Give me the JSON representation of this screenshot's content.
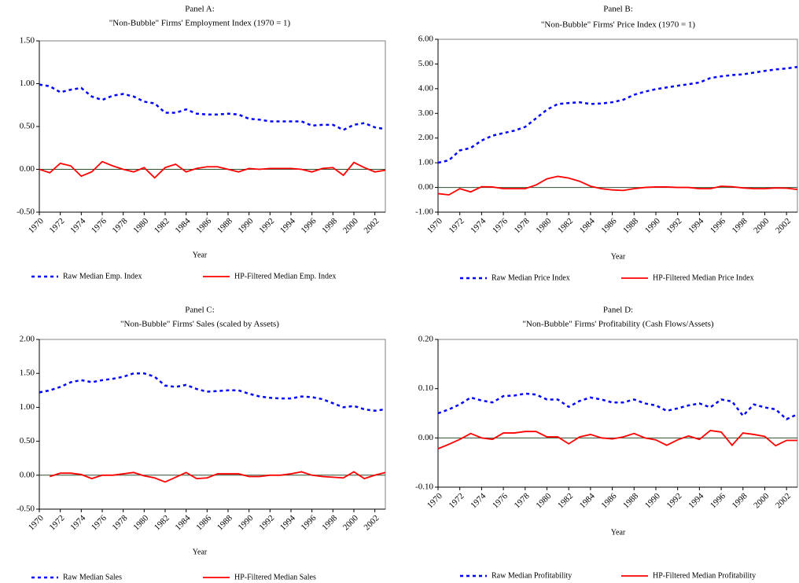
{
  "chart_data": [
    {
      "type": "line",
      "title": "Panel A:",
      "subtitle": "\"Non-Bubble\" Firms' Employment Index (1970 = 1)",
      "xlabel": "Year",
      "x": [
        1970,
        1971,
        1972,
        1973,
        1974,
        1975,
        1976,
        1977,
        1978,
        1979,
        1980,
        1981,
        1982,
        1983,
        1984,
        1985,
        1986,
        1987,
        1988,
        1989,
        1990,
        1991,
        1992,
        1993,
        1994,
        1995,
        1996,
        1997,
        1998,
        1999,
        2000,
        2001,
        2002,
        2003
      ],
      "xlim": [
        1970,
        2003
      ],
      "xticks": [
        1970,
        1972,
        1974,
        1976,
        1978,
        1980,
        1982,
        1984,
        1986,
        1988,
        1990,
        1992,
        1994,
        1996,
        1998,
        2000,
        2002
      ],
      "ylim": [
        -0.5,
        1.5
      ],
      "yticks": [
        {
          "value": -0.5,
          "label": "-0.50"
        },
        {
          "value": 0,
          "label": "0.00"
        },
        {
          "value": 0.5,
          "label": "0.50"
        },
        {
          "value": 1,
          "label": "1.00"
        },
        {
          "value": 1.5,
          "label": "1.50"
        }
      ],
      "series": [
        {
          "name": "Raw Median Emp. Index",
          "color": "#0000ff",
          "dashed": true,
          "values": [
            0.99,
            0.97,
            0.9,
            0.93,
            0.95,
            0.85,
            0.81,
            0.86,
            0.88,
            0.85,
            0.79,
            0.77,
            0.66,
            0.66,
            0.7,
            0.65,
            0.64,
            0.64,
            0.65,
            0.64,
            0.59,
            0.58,
            0.56,
            0.56,
            0.56,
            0.56,
            0.51,
            0.52,
            0.52,
            0.46,
            0.52,
            0.54,
            0.49,
            0.47
          ]
        },
        {
          "name": "HP-Filtered Median Emp. Index",
          "color": "#ff0000",
          "dashed": false,
          "values": [
            0.0,
            -0.04,
            0.07,
            0.04,
            -0.08,
            -0.03,
            0.09,
            0.04,
            0.0,
            -0.03,
            0.02,
            -0.1,
            0.02,
            0.06,
            -0.03,
            0.01,
            0.03,
            0.03,
            0.0,
            -0.03,
            0.01,
            0.0,
            0.01,
            0.01,
            0.01,
            0.0,
            -0.03,
            0.01,
            0.02,
            -0.07,
            0.08,
            0.02,
            -0.03,
            -0.01
          ]
        }
      ]
    },
    {
      "type": "line",
      "title": "Panel B:",
      "subtitle": "\"Non-Bubble\" Firms' Price Index (1970 = 1)",
      "xlabel": "Year",
      "x": [
        1970,
        1971,
        1972,
        1973,
        1974,
        1975,
        1976,
        1977,
        1978,
        1979,
        1980,
        1981,
        1982,
        1983,
        1984,
        1985,
        1986,
        1987,
        1988,
        1989,
        1990,
        1991,
        1992,
        1993,
        1994,
        1995,
        1996,
        1997,
        1998,
        1999,
        2000,
        2001,
        2002,
        2003
      ],
      "xlim": [
        1970,
        2003
      ],
      "xticks": [
        1970,
        1972,
        1974,
        1976,
        1978,
        1980,
        1982,
        1984,
        1986,
        1988,
        1990,
        1992,
        1994,
        1996,
        1998,
        2000,
        2002
      ],
      "ylim": [
        -1,
        6
      ],
      "yticks": [
        {
          "value": -1,
          "label": "-1.00"
        },
        {
          "value": 0,
          "label": "0.00"
        },
        {
          "value": 1,
          "label": "1.00"
        },
        {
          "value": 2,
          "label": "2.00"
        },
        {
          "value": 3,
          "label": "3.00"
        },
        {
          "value": 4,
          "label": "4.00"
        },
        {
          "value": 5,
          "label": "5.00"
        },
        {
          "value": 6,
          "label": "6.00"
        }
      ],
      "series": [
        {
          "name": "Raw Median Price Index",
          "color": "#0000ff",
          "dashed": true,
          "values": [
            1.0,
            1.1,
            1.5,
            1.6,
            1.9,
            2.1,
            2.2,
            2.3,
            2.45,
            2.8,
            3.15,
            3.38,
            3.42,
            3.45,
            3.38,
            3.4,
            3.45,
            3.55,
            3.75,
            3.88,
            3.98,
            4.05,
            4.12,
            4.18,
            4.25,
            4.43,
            4.5,
            4.55,
            4.58,
            4.65,
            4.72,
            4.78,
            4.82,
            4.88
          ]
        },
        {
          "name": "HP-Filtered Median Price Index",
          "color": "#ff0000",
          "dashed": false,
          "values": [
            -0.25,
            -0.3,
            -0.05,
            -0.18,
            0.03,
            0.02,
            -0.05,
            -0.05,
            -0.05,
            0.1,
            0.35,
            0.45,
            0.38,
            0.25,
            0.05,
            -0.05,
            -0.1,
            -0.12,
            -0.05,
            0.0,
            0.02,
            0.02,
            0.0,
            0.0,
            -0.05,
            -0.05,
            0.05,
            0.03,
            -0.02,
            -0.05,
            -0.05,
            -0.02,
            -0.03,
            -0.08
          ]
        }
      ]
    },
    {
      "type": "line",
      "title": "Panel C:",
      "subtitle": "\"Non-Bubble\" Firms' Sales (scaled by Assets)",
      "xlabel": "Year",
      "x": [
        1970,
        1971,
        1972,
        1973,
        1974,
        1975,
        1976,
        1977,
        1978,
        1979,
        1980,
        1981,
        1982,
        1983,
        1984,
        1985,
        1986,
        1987,
        1988,
        1989,
        1990,
        1991,
        1992,
        1993,
        1994,
        1995,
        1996,
        1997,
        1998,
        1999,
        2000,
        2001,
        2002,
        2003
      ],
      "xlim": [
        1970,
        2003
      ],
      "xticks": [
        1970,
        1972,
        1974,
        1976,
        1978,
        1980,
        1982,
        1984,
        1986,
        1988,
        1990,
        1992,
        1994,
        1996,
        1998,
        2000,
        2002
      ],
      "ylim": [
        -0.5,
        2
      ],
      "yticks": [
        {
          "value": -0.5,
          "label": "-0.50"
        },
        {
          "value": 0,
          "label": "0.00"
        },
        {
          "value": 0.5,
          "label": "0.50"
        },
        {
          "value": 1,
          "label": "1.00"
        },
        {
          "value": 1.5,
          "label": "1.50"
        },
        {
          "value": 2,
          "label": "2.00"
        }
      ],
      "series": [
        {
          "name": "Raw Median Sales",
          "color": "#0000ff",
          "dashed": true,
          "values": [
            1.22,
            1.25,
            1.3,
            1.37,
            1.4,
            1.37,
            1.4,
            1.42,
            1.45,
            1.5,
            1.5,
            1.45,
            1.32,
            1.3,
            1.33,
            1.27,
            1.23,
            1.24,
            1.25,
            1.25,
            1.2,
            1.16,
            1.14,
            1.13,
            1.13,
            1.16,
            1.15,
            1.12,
            1.06,
            1.0,
            1.02,
            0.97,
            0.95,
            0.97
          ]
        },
        {
          "name": "HP-Filtered Median Sales",
          "color": "#ff0000",
          "dashed": false,
          "values": [
            null,
            -0.02,
            0.03,
            0.03,
            0.01,
            -0.05,
            0.0,
            0.0,
            0.02,
            0.04,
            -0.01,
            -0.04,
            -0.1,
            -0.03,
            0.04,
            -0.05,
            -0.04,
            0.02,
            0.02,
            0.02,
            -0.02,
            -0.02,
            0.0,
            0.0,
            0.02,
            0.05,
            0.0,
            -0.02,
            -0.03,
            -0.04,
            0.05,
            -0.05,
            0.0,
            0.04
          ]
        }
      ]
    },
    {
      "type": "line",
      "title": "Panel D:",
      "subtitle": "\"Non-Bubble\" Firms' Profitability (Cash Flows/Assets)",
      "xlabel": "Year",
      "x": [
        1970,
        1971,
        1972,
        1973,
        1974,
        1975,
        1976,
        1977,
        1978,
        1979,
        1980,
        1981,
        1982,
        1983,
        1984,
        1985,
        1986,
        1987,
        1988,
        1989,
        1990,
        1991,
        1992,
        1993,
        1994,
        1995,
        1996,
        1997,
        1998,
        1999,
        2000,
        2001,
        2002,
        2003
      ],
      "xlim": [
        1970,
        2003
      ],
      "xticks": [
        1970,
        1972,
        1974,
        1976,
        1978,
        1980,
        1982,
        1984,
        1986,
        1988,
        1990,
        1992,
        1994,
        1996,
        1998,
        2000,
        2002
      ],
      "ylim": [
        -0.1,
        0.2
      ],
      "yticks": [
        {
          "value": -0.1,
          "label": "-0.10"
        },
        {
          "value": 0,
          "label": "0.00"
        },
        {
          "value": 0.1,
          "label": "0.10"
        },
        {
          "value": 0.2,
          "label": "0.20"
        }
      ],
      "series": [
        {
          "name": "Raw Median Profitability",
          "color": "#0000ff",
          "dashed": true,
          "values": [
            0.05,
            0.058,
            0.068,
            0.082,
            0.076,
            0.072,
            0.085,
            0.086,
            0.09,
            0.088,
            0.078,
            0.078,
            0.063,
            0.075,
            0.082,
            0.078,
            0.072,
            0.072,
            0.078,
            0.07,
            0.066,
            0.055,
            0.06,
            0.066,
            0.07,
            0.062,
            0.078,
            0.074,
            0.045,
            0.068,
            0.062,
            0.058,
            0.038,
            0.048
          ]
        },
        {
          "name": "HP-Filtered Median Profitability",
          "color": "#ff0000",
          "dashed": false,
          "values": [
            -0.022,
            -0.013,
            -0.003,
            0.009,
            0.0,
            -0.003,
            0.01,
            0.01,
            0.013,
            0.013,
            0.002,
            0.002,
            -0.012,
            0.002,
            0.007,
            0.0,
            -0.002,
            0.002,
            0.009,
            0.0,
            -0.004,
            -0.015,
            -0.004,
            0.004,
            -0.003,
            0.015,
            0.012,
            -0.015,
            0.01,
            0.007,
            0.003,
            -0.016,
            -0.005,
            -0.005
          ]
        }
      ]
    }
  ]
}
